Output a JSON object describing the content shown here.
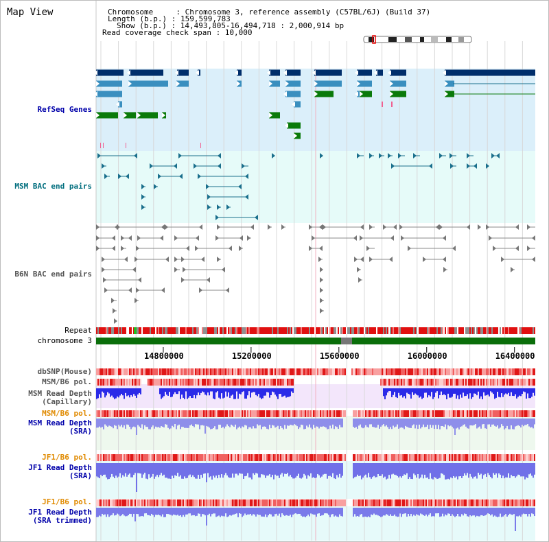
{
  "title": "Map View",
  "info": {
    "chromosome": "Chromosome     : Chromosome 3, reference assembly (C57BL/6J) (Build 37)",
    "length": "Length (b.p.) : 159,599,783",
    "show": "Show (b.p.) : 14,493,805-16,494,718 : 2,000,914 bp",
    "span": "Read coverage check span : 10,000"
  },
  "tracks": {
    "refseq": "RefSeq Genes",
    "msm_bac": "MSM BAC end pairs",
    "b6n_bac": "B6N BAC end pairs",
    "repeat": "Repeat",
    "chromosome": "chromosome 3",
    "dbsnp": "dbSNP(Mouse)",
    "msm_b6_pol": "MSM/B6 pol.",
    "msm_depth_cap_1": "MSM Read Depth",
    "msm_depth_cap_2": "(Capillary)",
    "msm_b6_pol2": "MSM/B6 pol.",
    "msm_depth_sra_1": "MSM Read Depth",
    "msm_depth_sra_2": "(SRA)",
    "jf1_b6_pol": "JF1/B6 pol.",
    "jf1_depth_sra_1": "JF1 Read Depth",
    "jf1_depth_sra_2": "(SRA)",
    "jf1_b6_pol2": "JF1/B6 pol.",
    "jf1_depth_trim_1": "JF1 Read Depth",
    "jf1_depth_trim_2": "(SRA trimmed)"
  },
  "axis": {
    "ticks": [
      "14800000",
      "15200000",
      "15600000",
      "16000000",
      "16400000"
    ],
    "tick_values": [
      14800000,
      15200000,
      15600000,
      16000000,
      16400000
    ],
    "start": 14493805,
    "end": 16494718
  },
  "colors": {
    "refseq_bg": "#dbeffa",
    "bac_bg": "#e6fbf9",
    "dark_blue": "#002e6b",
    "mid_blue": "#3a8fbf",
    "green": "#0a7a0a",
    "teal": "#1a6f8c",
    "gray": "#777777",
    "red": "#e02020",
    "depth_blue": "#3030f0"
  }
}
